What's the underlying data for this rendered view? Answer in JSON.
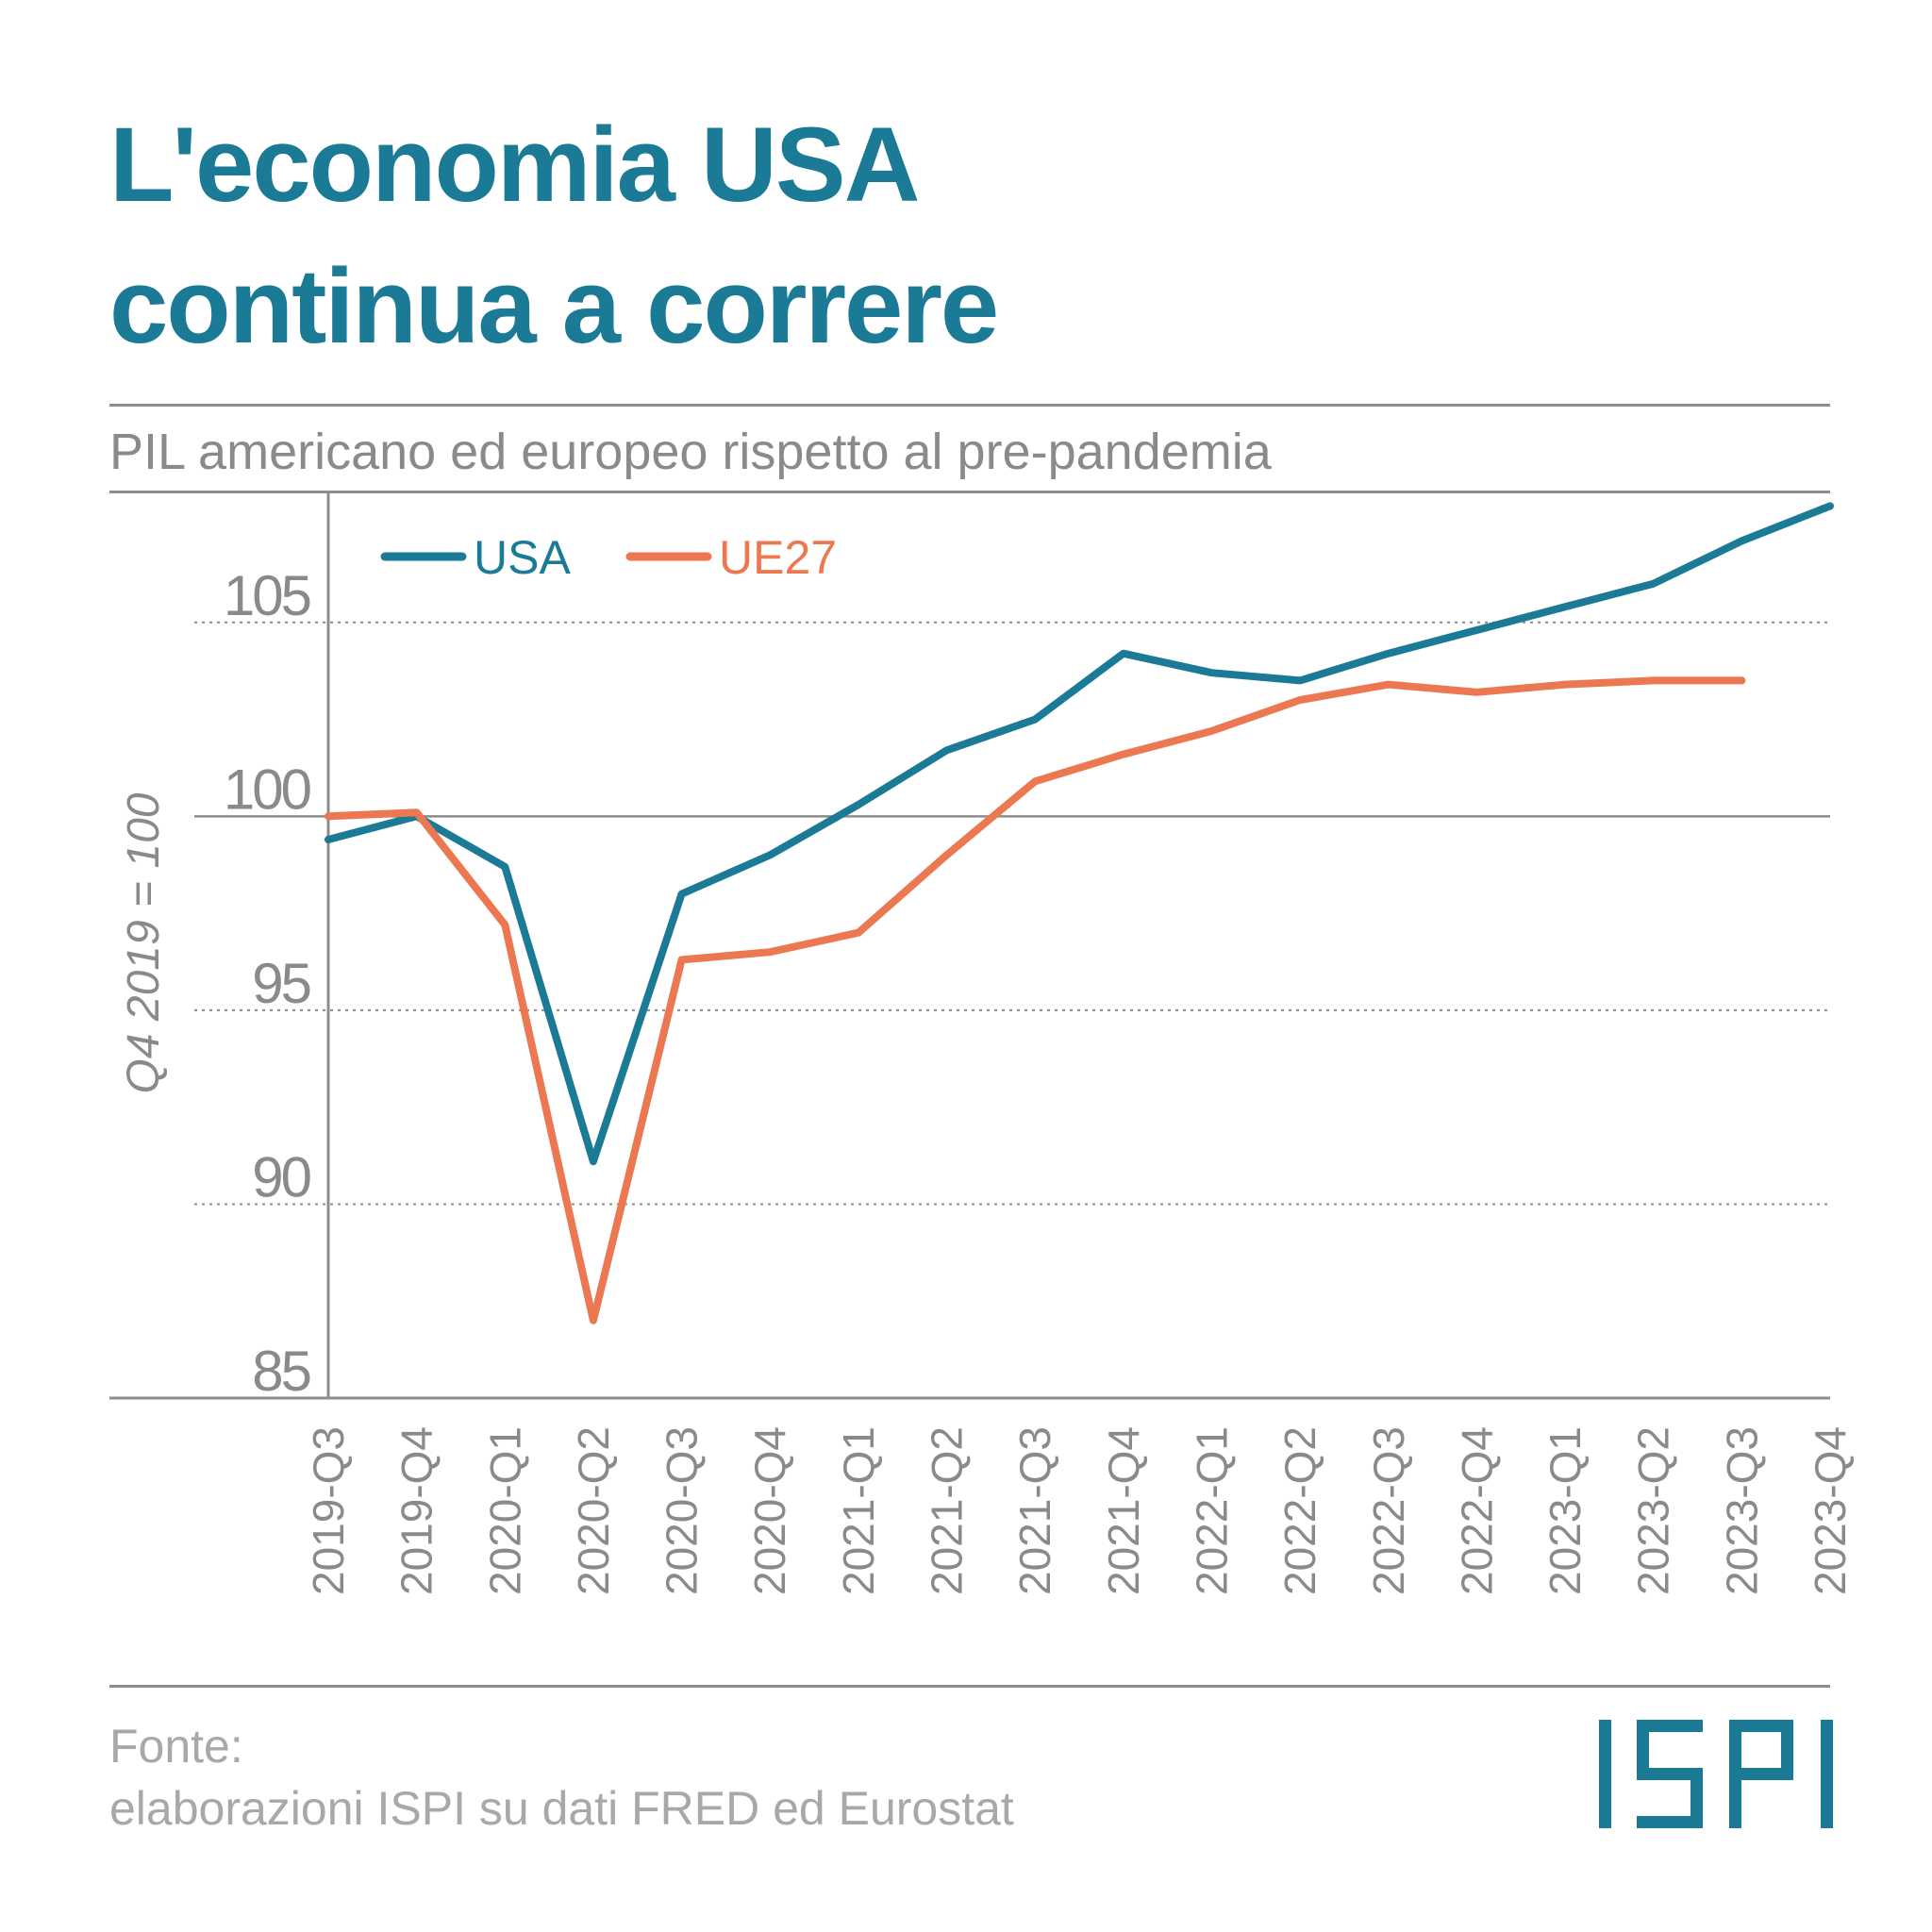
{
  "title": {
    "line1": "L'economia USA",
    "line2": "continua a correre"
  },
  "subtitle": "PIL americano ed europeo rispetto al pre-pandemia",
  "source": {
    "line1": "Fonte:",
    "line2": "elaborazioni ISPI su dati FRED ed Eurostat"
  },
  "logo": "ISPI",
  "colors": {
    "title": "#1b7a96",
    "usa": "#1b7a96",
    "ue27": "#ec7852",
    "text_gray": "#8a8a8a",
    "grid": "#8c8c8c"
  },
  "chart_data": {
    "type": "line",
    "ylabel": "Q4 2019 = 100",
    "ylim": [
      85,
      108.4
    ],
    "yticks": [
      85,
      90,
      95,
      100,
      105
    ],
    "grid": "horizontal dotted",
    "legend_placement": "top-left",
    "categories": [
      "2019-Q3",
      "2019-Q4",
      "2020-Q1",
      "2020-Q2",
      "2020-Q3",
      "2020-Q4",
      "2021-Q1",
      "2021-Q2",
      "2021-Q3",
      "2021-Q4",
      "2022-Q1",
      "2022-Q2",
      "2022-Q3",
      "2022-Q4",
      "2023-Q1",
      "2023-Q2",
      "2023-Q3",
      "2023-Q4"
    ],
    "series": [
      {
        "name": "USA",
        "color": "#1b7a96",
        "values": [
          99.4,
          100.0,
          98.7,
          91.1,
          98.0,
          99.0,
          100.3,
          101.7,
          102.5,
          104.2,
          103.7,
          103.5,
          104.2,
          104.8,
          105.4,
          106.0,
          107.1,
          108.0
        ]
      },
      {
        "name": "UE27",
        "color": "#ec7852",
        "values": [
          100.0,
          100.1,
          97.2,
          87.0,
          96.3,
          96.5,
          97.0,
          99.0,
          100.9,
          101.6,
          102.2,
          103.0,
          103.4,
          103.2,
          103.4,
          103.5,
          103.5,
          null
        ]
      }
    ]
  }
}
